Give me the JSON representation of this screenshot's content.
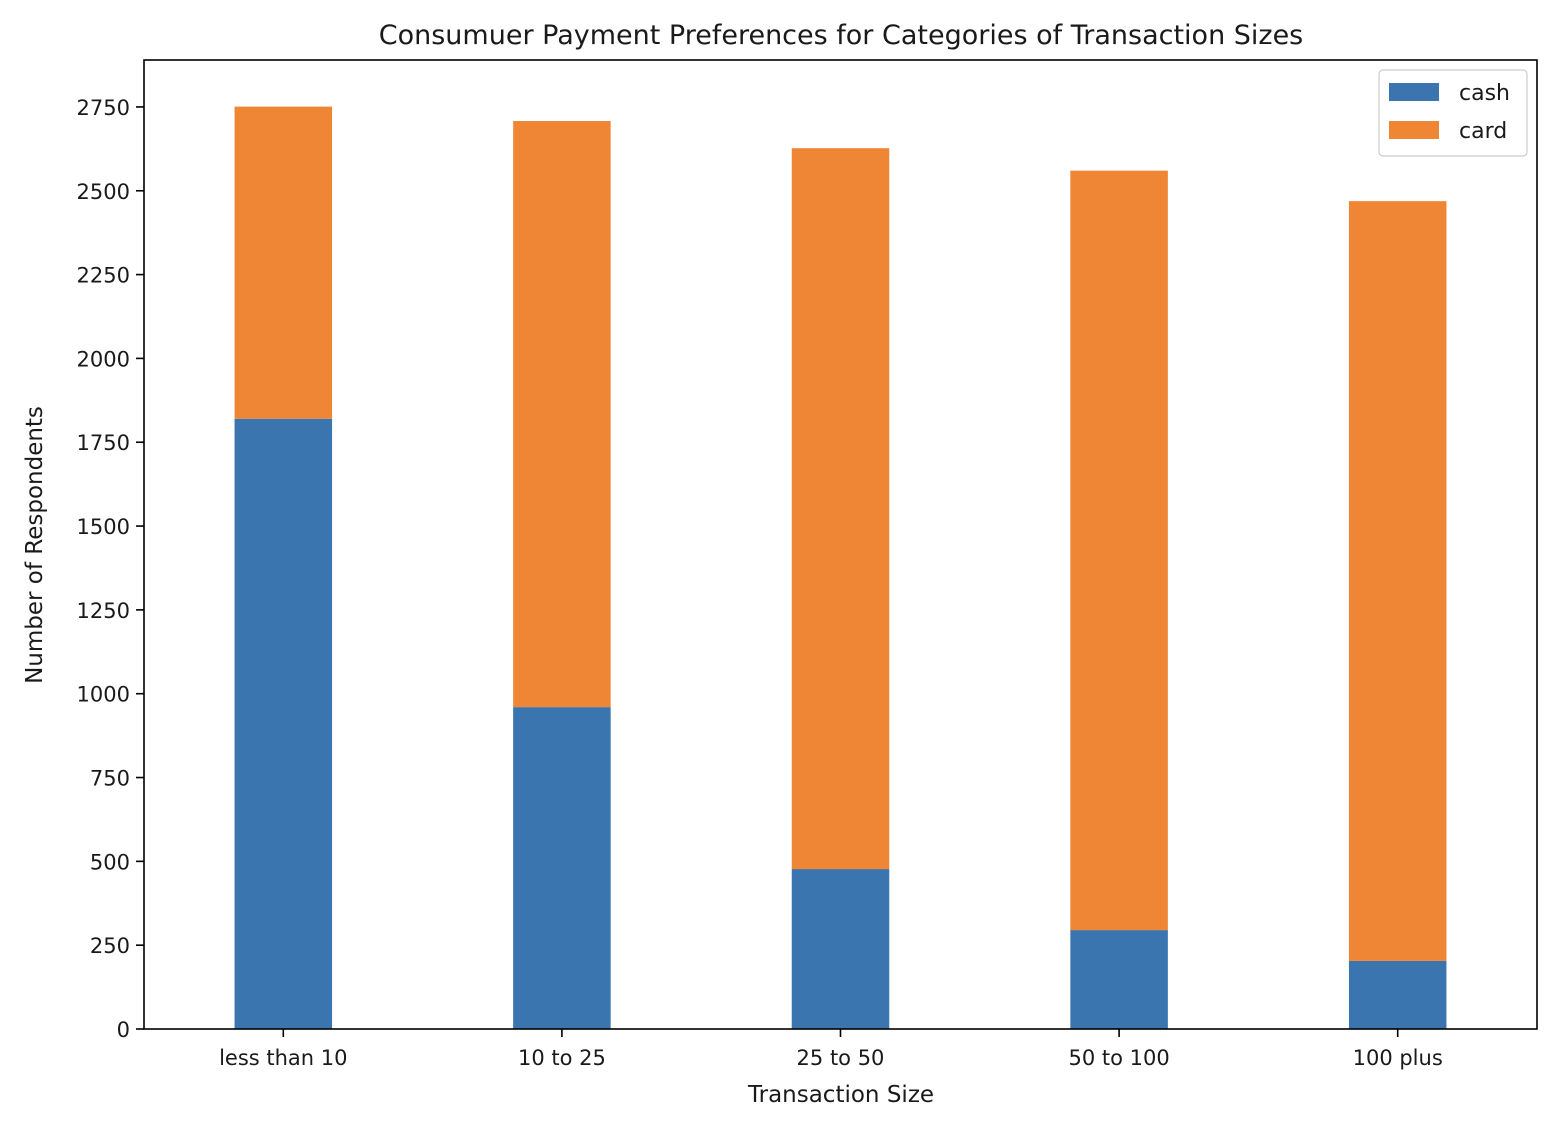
{
  "chart_data": {
    "type": "bar",
    "stacked": true,
    "title": "Consumuer Payment Preferences for Categories of Transaction Sizes",
    "xlabel": "Transaction Size",
    "ylabel": "Number of Respondents",
    "categories": [
      "less than 10",
      "10 to 25",
      "25 to 50",
      "50 to 100",
      "100 plus"
    ],
    "series": [
      {
        "name": "cash",
        "color": "#3a75af",
        "values": [
          1820,
          960,
          477,
          295,
          203
        ]
      },
      {
        "name": "card",
        "color": "#ef8636",
        "values": [
          931,
          1748,
          2150,
          2265,
          2266
        ]
      }
    ],
    "ylim": [
      0,
      2890
    ],
    "yticks": [
      0,
      250,
      500,
      750,
      1000,
      1250,
      1500,
      1750,
      2000,
      2250,
      2500,
      2750
    ],
    "grid": false,
    "legend_position": "top-right"
  }
}
